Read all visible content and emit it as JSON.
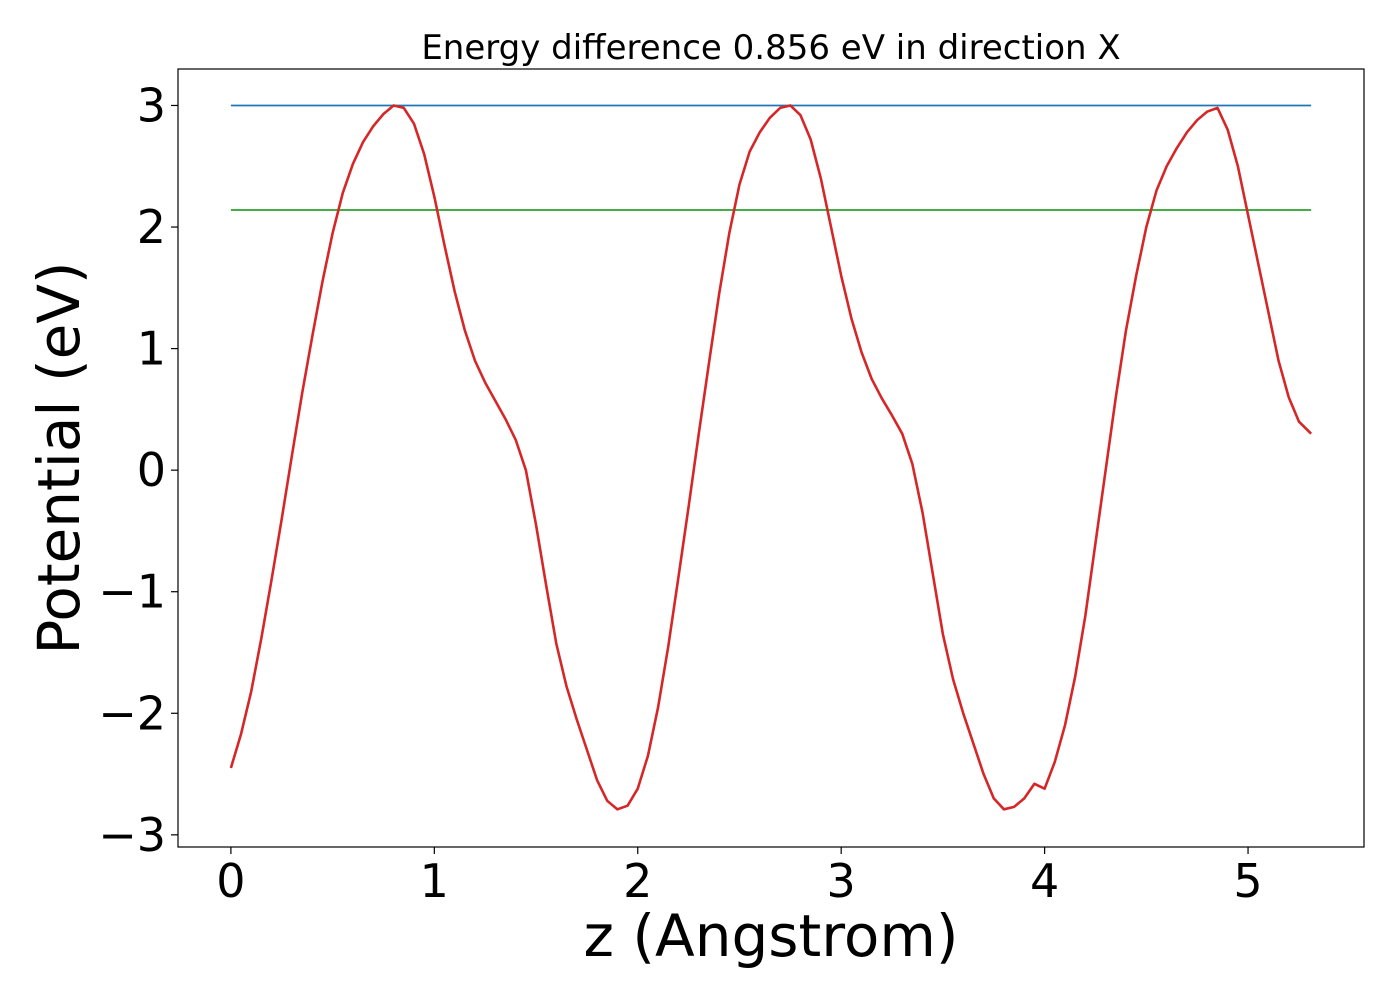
{
  "chart_data": {
    "type": "line",
    "title": "Energy difference 0.856 eV in direction X",
    "xlabel": "z (Angstrom)",
    "ylabel": "Potential (eV)",
    "xlim": [
      -0.26,
      5.57
    ],
    "ylim": [
      -3.1,
      3.3
    ],
    "xticks": [
      0,
      1,
      2,
      3,
      4,
      5
    ],
    "yticks": [
      -3,
      -2,
      -1,
      0,
      1,
      2,
      3
    ],
    "ytick_labels": [
      "−3",
      "−2",
      "−1",
      "0",
      "1",
      "2",
      "3"
    ],
    "grid": false,
    "series": [
      {
        "color": "#1f77b4",
        "x": [
          0,
          5.31
        ],
        "y": [
          3.0,
          3.0
        ]
      },
      {
        "color": "#2ca02c",
        "x": [
          0,
          5.31
        ],
        "y": [
          2.14,
          2.14
        ]
      },
      {
        "color": "#d62728",
        "x": [
          0,
          0.05,
          0.1,
          0.15,
          0.2,
          0.25,
          0.3,
          0.35,
          0.4,
          0.45,
          0.5,
          0.55,
          0.6,
          0.65,
          0.7,
          0.75,
          0.8,
          0.85,
          0.9,
          0.95,
          1.0,
          1.05,
          1.1,
          1.15,
          1.2,
          1.25,
          1.3,
          1.35,
          1.4,
          1.45,
          1.5,
          1.55,
          1.6,
          1.65,
          1.7,
          1.75,
          1.8,
          1.85,
          1.9,
          1.95,
          2.0,
          2.05,
          2.1,
          2.15,
          2.2,
          2.25,
          2.3,
          2.35,
          2.4,
          2.45,
          2.5,
          2.55,
          2.6,
          2.65,
          2.7,
          2.75,
          2.8,
          2.85,
          2.9,
          2.95,
          3.0,
          3.05,
          3.1,
          3.15,
          3.2,
          3.25,
          3.3,
          3.35,
          3.4,
          3.45,
          3.5,
          3.55,
          3.6,
          3.65,
          3.7,
          3.75,
          3.8,
          3.85,
          3.9,
          3.95,
          4.0,
          4.05,
          4.1,
          4.15,
          4.2,
          4.25,
          4.3,
          4.35,
          4.4,
          4.45,
          4.5,
          4.55,
          4.6,
          4.65,
          4.7,
          4.75,
          4.8,
          4.85,
          4.9,
          4.95,
          5.0,
          5.05,
          5.1,
          5.15,
          5.2,
          5.25,
          5.31
        ],
        "y": [
          -2.45,
          -2.17,
          -1.82,
          -1.38,
          -0.9,
          -0.4,
          0.12,
          0.63,
          1.1,
          1.55,
          1.95,
          2.28,
          2.52,
          2.7,
          2.83,
          2.93,
          3.0,
          2.98,
          2.85,
          2.6,
          2.25,
          1.85,
          1.47,
          1.15,
          0.9,
          0.72,
          0.57,
          0.42,
          0.25,
          0.0,
          -0.45,
          -0.95,
          -1.43,
          -1.78,
          -2.05,
          -2.3,
          -2.55,
          -2.72,
          -2.79,
          -2.76,
          -2.62,
          -2.35,
          -1.95,
          -1.45,
          -0.88,
          -0.3,
          0.3,
          0.88,
          1.45,
          1.95,
          2.35,
          2.62,
          2.78,
          2.9,
          2.98,
          3.0,
          2.92,
          2.72,
          2.4,
          2.0,
          1.6,
          1.25,
          0.97,
          0.75,
          0.59,
          0.45,
          0.3,
          0.05,
          -0.35,
          -0.85,
          -1.35,
          -1.72,
          -2.0,
          -2.25,
          -2.5,
          -2.7,
          -2.79,
          -2.77,
          -2.7,
          -2.58,
          -2.62,
          -2.4,
          -2.1,
          -1.7,
          -1.2,
          -0.6,
          0.0,
          0.6,
          1.15,
          1.6,
          2.0,
          2.3,
          2.5,
          2.65,
          2.78,
          2.88,
          2.95,
          2.98,
          2.8,
          2.5,
          2.1,
          1.7,
          1.3,
          0.9,
          0.6,
          0.4,
          0.3
        ]
      }
    ]
  }
}
